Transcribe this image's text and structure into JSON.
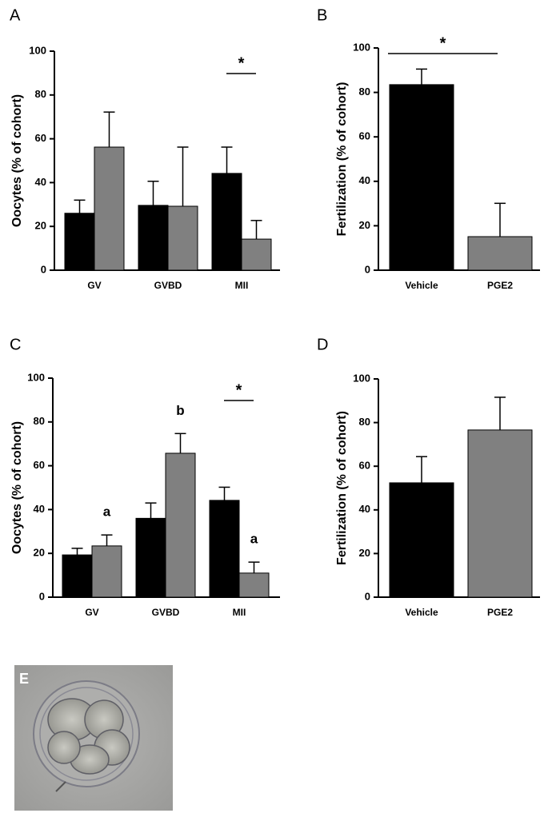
{
  "chart_data": [
    {
      "type": "bar",
      "label": "A",
      "ylabel": "Oocytes (% of cohort)",
      "categories": [
        "GV",
        "GVBD",
        "MII"
      ],
      "series": [
        {
          "color": "#000000",
          "values": [
            26,
            29.6,
            44.2
          ],
          "errors": [
            6,
            11,
            12
          ]
        },
        {
          "color": "#808080",
          "values": [
            56.2,
            29.2,
            14.2
          ],
          "errors": [
            16,
            27,
            8.5
          ]
        }
      ],
      "significance": {
        "text": "*",
        "categories": [
          "MII"
        ]
      },
      "ylim": [
        0,
        100
      ],
      "yticks": [
        0,
        20,
        40,
        60,
        80,
        100
      ]
    },
    {
      "type": "bar",
      "label": "B",
      "ylabel": "Fertilization (% of cohort)",
      "categories": [
        "Vehicle",
        "PGE2"
      ],
      "series": [
        {
          "colors": [
            "#000000",
            "#808080"
          ],
          "values": [
            83.5,
            15.1
          ],
          "errors": [
            7,
            15
          ]
        }
      ],
      "significance": {
        "text": "*",
        "categories": [
          "Vehicle",
          "PGE2"
        ]
      },
      "ylim": [
        0,
        100
      ],
      "yticks": [
        0,
        20,
        40,
        60,
        80,
        100
      ]
    },
    {
      "type": "bar",
      "label": "C",
      "ylabel": "Oocytes (% of cohort)",
      "categories": [
        "GV",
        "GVBD",
        "MII"
      ],
      "series": [
        {
          "color": "#000000",
          "values": [
            19.3,
            36,
            44.2
          ],
          "errors": [
            3,
            7,
            6
          ]
        },
        {
          "color": "#808080",
          "values": [
            23.4,
            65.7,
            11
          ],
          "errors": [
            5,
            9,
            5
          ],
          "labels": [
            "a",
            "b",
            "a"
          ]
        }
      ],
      "significance": {
        "text": "*",
        "categories": [
          "MII"
        ]
      },
      "ylim": [
        0,
        100
      ],
      "yticks": [
        0,
        20,
        40,
        60,
        80,
        100
      ]
    },
    {
      "type": "bar",
      "label": "D",
      "ylabel": "Fertilization (% of cohort)",
      "categories": [
        "Vehicle",
        "PGE2"
      ],
      "series": [
        {
          "colors": [
            "#000000",
            "#808080"
          ],
          "values": [
            52.4,
            76.6
          ],
          "errors": [
            12,
            15
          ]
        }
      ],
      "ylim": [
        0,
        100
      ],
      "yticks": [
        0,
        20,
        40,
        60,
        80,
        100
      ]
    }
  ],
  "image_panel": {
    "label": "E"
  }
}
